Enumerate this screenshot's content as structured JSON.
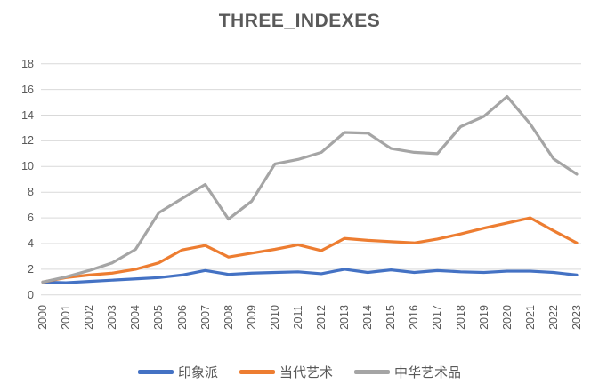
{
  "chart_data": {
    "type": "line",
    "title": "THREE_INDEXES",
    "categories": [
      "2000",
      "2001",
      "2002",
      "2003",
      "2004",
      "2005",
      "2006",
      "2007",
      "2008",
      "2009",
      "2010",
      "2011",
      "2012",
      "2013",
      "2014",
      "2015",
      "2016",
      "2017",
      "2018",
      "2019",
      "2020",
      "2021",
      "2022",
      "2023"
    ],
    "series": [
      {
        "name": "印象派",
        "color": "#4472C4",
        "values": [
          1.0,
          0.95,
          1.05,
          1.15,
          1.25,
          1.35,
          1.55,
          1.9,
          1.6,
          1.7,
          1.75,
          1.8,
          1.65,
          2.0,
          1.75,
          1.95,
          1.75,
          1.9,
          1.8,
          1.75,
          1.85,
          1.85,
          1.75,
          1.55
        ]
      },
      {
        "name": "当代艺术",
        "color": "#ED7D31",
        "values": [
          1.0,
          1.35,
          1.55,
          1.7,
          2.0,
          2.5,
          3.5,
          3.85,
          2.95,
          3.25,
          3.55,
          3.9,
          3.45,
          4.4,
          4.25,
          4.15,
          4.05,
          4.35,
          4.75,
          5.2,
          5.6,
          6.0,
          5.0,
          4.05
        ]
      },
      {
        "name": "中华艺术品",
        "color": "#A5A5A5",
        "values": [
          1.0,
          1.4,
          1.9,
          2.5,
          3.55,
          6.4,
          7.5,
          8.6,
          5.9,
          7.3,
          10.2,
          10.55,
          11.1,
          12.65,
          12.6,
          11.4,
          11.1,
          11.0,
          13.1,
          13.9,
          15.45,
          13.3,
          10.6,
          9.4
        ]
      }
    ],
    "ylim": [
      0,
      18
    ],
    "ytick_step": 2,
    "ytick_labels": [
      "0",
      "2",
      "4",
      "6",
      "8",
      "10",
      "12",
      "14",
      "16",
      "18"
    ],
    "grid": true,
    "legend_position": "bottom",
    "xlabel": "",
    "ylabel": "",
    "gridline_color": "#D9D9D9",
    "axis_text_color": "#595959",
    "title_color": "#595959"
  }
}
